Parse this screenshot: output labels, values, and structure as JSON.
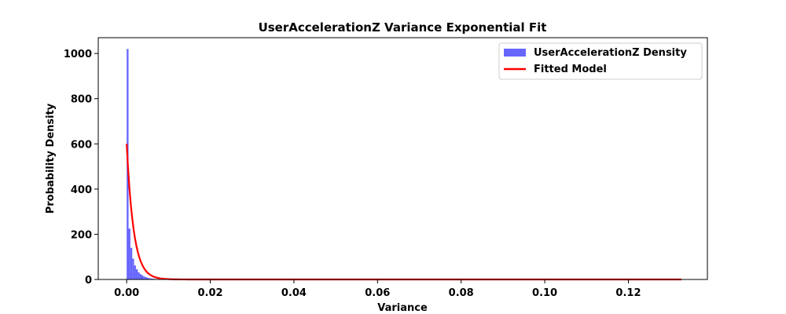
{
  "chart_data": {
    "type": "bar",
    "title": "UserAccelerationZ Variance Exponential Fit",
    "xlabel": "Variance",
    "ylabel": "Probability Density",
    "xlim": [
      -0.0068,
      0.1389
    ],
    "ylim": [
      0,
      1070
    ],
    "xticks": [
      0.0,
      0.02,
      0.04,
      0.06,
      0.08,
      0.1,
      0.12
    ],
    "xtick_labels": [
      "0.00",
      "0.02",
      "0.04",
      "0.06",
      "0.08",
      "0.10",
      "0.12"
    ],
    "yticks": [
      0,
      200,
      400,
      600,
      800,
      1000
    ],
    "ytick_labels": [
      "0",
      "200",
      "400",
      "600",
      "800",
      "1000"
    ],
    "grid": false,
    "legend_position": "top-right",
    "colors": {
      "histogram": "#6666ff",
      "fit": "#ff0000"
    },
    "series": [
      {
        "name": "UserAccelerationZ Density",
        "kind": "histogram",
        "bin_width": 0.000442,
        "bin_start": 0.0,
        "values": [
          1020,
          225,
          140,
          92,
          62,
          45,
          32,
          24,
          18,
          13,
          10,
          7,
          5,
          4,
          3,
          2,
          2,
          1,
          1,
          1
        ]
      },
      {
        "name": "Fitted Model",
        "kind": "line",
        "function": "exponential",
        "amplitude": 600,
        "rate": 600,
        "x_range": [
          0.0,
          0.1327
        ]
      }
    ]
  }
}
